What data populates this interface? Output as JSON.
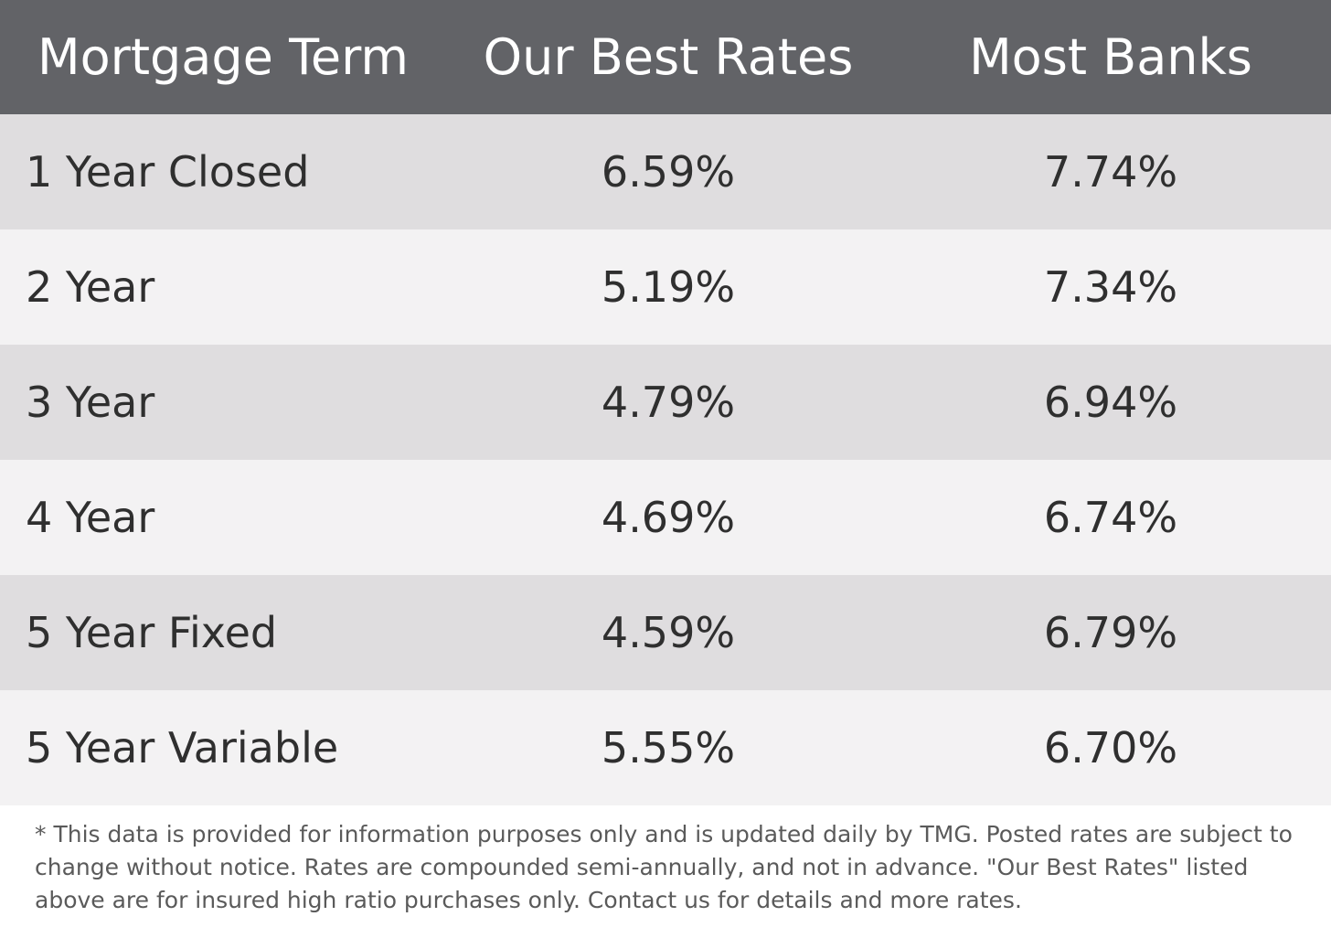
{
  "table": {
    "headers": [
      "Mortgage Term",
      "Our Best Rates",
      "Most Banks"
    ],
    "rows": [
      {
        "term": "1 Year Closed",
        "best": "6.59%",
        "banks": "7.74%"
      },
      {
        "term": "2 Year",
        "best": "5.19%",
        "banks": "7.34%"
      },
      {
        "term": "3 Year",
        "best": "4.79%",
        "banks": "6.94%"
      },
      {
        "term": "4 Year",
        "best": "4.69%",
        "banks": "6.74%"
      },
      {
        "term": "5 Year Fixed",
        "best": "4.59%",
        "banks": "6.79%"
      },
      {
        "term": "5 Year Variable",
        "best": "5.55%",
        "banks": "6.70%"
      }
    ]
  },
  "disclaimer": "* This data is provided for information purposes only and is updated daily by TMG. Posted rates are subject to change without notice. Rates are compounded semi-annually, and not in advance. \"Our Best Rates\" listed above are for insured high ratio purchases only. Contact us for details and more rates.",
  "colors": {
    "header_bg": "#626367",
    "header_text": "#ffffff",
    "row_odd_bg": "#dfdddf",
    "row_even_bg": "#f3f2f3",
    "body_text": "#2f2f2f",
    "disclaimer_text": "#5a5a5a"
  }
}
